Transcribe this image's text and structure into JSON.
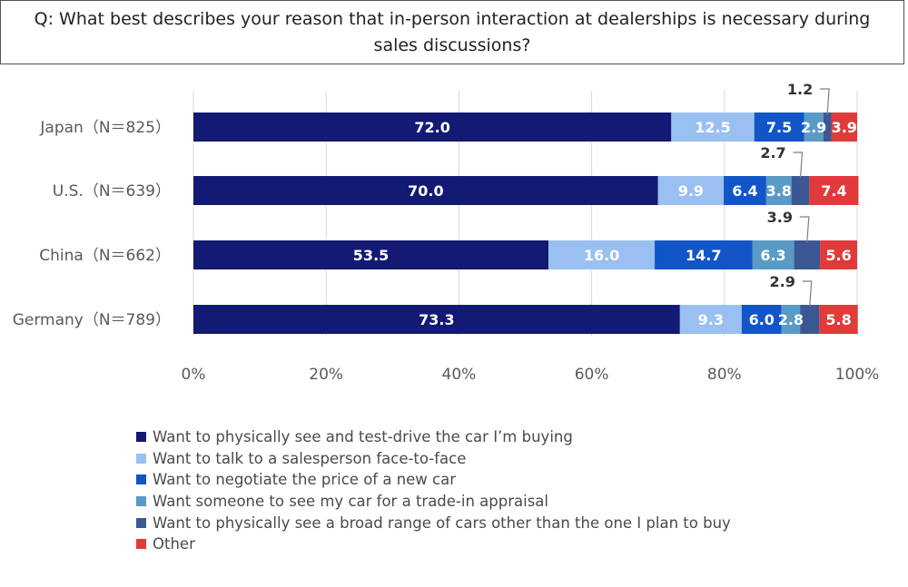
{
  "title": "Q: What best describes your reason that in-person interaction at dealerships is necessary during sales discussions?",
  "chart_data": {
    "type": "bar",
    "orientation": "horizontal",
    "stacked": true,
    "categories": [
      "Japan（N＝825）",
      "U.S.（N＝639）",
      "China（N＝662）",
      "Germany（N＝789）"
    ],
    "series": [
      {
        "name": "Want to physically see and test-drive the car I’m buying",
        "color": "#131a73",
        "label_color": "#ffffff",
        "values": [
          72.0,
          70.0,
          53.5,
          73.3
        ]
      },
      {
        "name": "Want to talk to a salesperson face-to-face",
        "color": "#9ac0f2",
        "label_color": "#ffffff",
        "values": [
          12.5,
          9.9,
          16.0,
          9.3
        ]
      },
      {
        "name": "Want to negotiate the price of a new car",
        "color": "#1155c7",
        "label_color": "#ffffff",
        "values": [
          7.5,
          6.4,
          14.7,
          6.0
        ]
      },
      {
        "name": "Want someone to see my car for a trade-in appraisal",
        "color": "#5a9ac6",
        "label_color": "#ffffff",
        "values": [
          2.9,
          3.8,
          6.3,
          2.8
        ]
      },
      {
        "name": "Want to physically see a broad range of cars other than the one I plan to buy",
        "color": "#3c5894",
        "label_color": "#ffffff",
        "values": [
          1.2,
          2.7,
          3.9,
          2.9
        ]
      },
      {
        "name": "Other",
        "color": "#e03b3b",
        "label_color": "#ffffff",
        "values": [
          3.9,
          7.4,
          5.6,
          5.8
        ]
      }
    ],
    "callout_series_index": 4,
    "xlim": [
      0,
      100
    ],
    "x_ticks": [
      0,
      20,
      40,
      60,
      80,
      100
    ],
    "x_tick_labels": [
      "0%",
      "20%",
      "40%",
      "60%",
      "80%",
      "100%"
    ],
    "grid": true,
    "legend_position": "bottom-left"
  }
}
